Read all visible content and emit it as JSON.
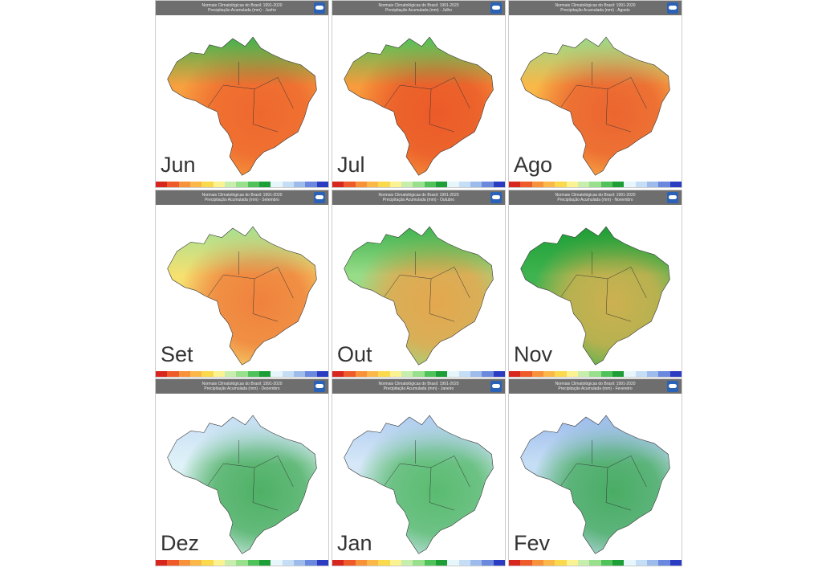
{
  "title_line1": "Normais Climatológicas do Brasil: 1991-2020",
  "logo_text": "INMET",
  "colorbar": [
    "#d7261e",
    "#ef5a2a",
    "#f7913a",
    "#fbb848",
    "#fbd94c",
    "#fbf291",
    "#c8eeae",
    "#98e08c",
    "#4fc35a",
    "#1e9e36",
    "#e6f6fb",
    "#c6def5",
    "#9dbcec",
    "#6a88de",
    "#2b3cc2"
  ],
  "panels": [
    {
      "label": "Jun",
      "subtitle": "Precipitação Acumulada (mm) - Junho",
      "base": "#f7a040",
      "hot": "#ec5a2a",
      "north": "#3fb34f"
    },
    {
      "label": "Jul",
      "subtitle": "Precipitação Acumulada (mm) - Julho",
      "base": "#f79b3c",
      "hot": "#e84a24",
      "north": "#4fc35a"
    },
    {
      "label": "Ago",
      "subtitle": "Precipitação Acumulada (mm) - Agosto",
      "base": "#f9b848",
      "hot": "#e8502a",
      "north": "#9ad98a"
    },
    {
      "label": "Set",
      "subtitle": "Precipitação Acumulada (mm) - Setembro",
      "base": "#f6e070",
      "hot": "#ee6a30",
      "north": "#a6e092"
    },
    {
      "label": "Out",
      "subtitle": "Precipitação Acumulada (mm) - Outubro",
      "base": "#98dc88",
      "hot": "#f79a40",
      "north": "#3fb34f"
    },
    {
      "label": "Nov",
      "subtitle": "Precipitação Acumulada (mm) - Novembro",
      "base": "#3fb34f",
      "hot": "#f0b050",
      "north": "#1e9e36"
    },
    {
      "label": "Dez",
      "subtitle": "Precipitação Acumulada (mm) - Dezembro",
      "base": "#dff2f8",
      "hot": "#2aa040",
      "north": "#c6def5"
    },
    {
      "label": "Jan",
      "subtitle": "Precipitação Acumulada (mm) - Janeiro",
      "base": "#d6e8f8",
      "hot": "#3bb04e",
      "north": "#b0cdf0"
    },
    {
      "label": "Fev",
      "subtitle": "Precipitação Acumulada (mm) - Fevereiro",
      "base": "#c6def5",
      "hot": "#2aa040",
      "north": "#9dbcec"
    }
  ]
}
